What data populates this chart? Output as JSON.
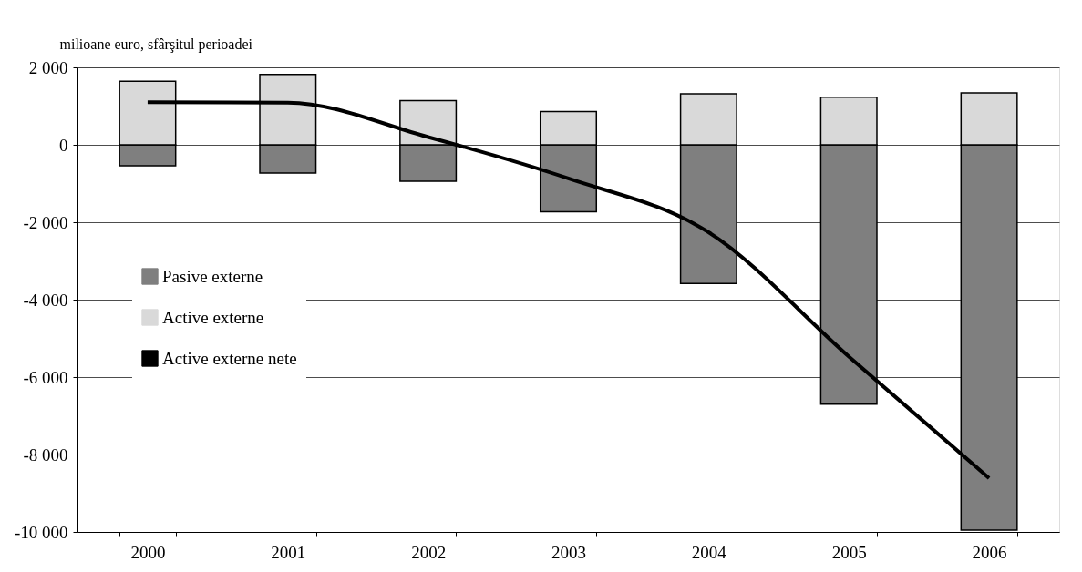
{
  "chart_data": {
    "type": "bar",
    "ylabel": "milioane euro, sfârşitul perioadei",
    "categories": [
      "2000",
      "2001",
      "2002",
      "2003",
      "2004",
      "2005",
      "2006"
    ],
    "series": [
      {
        "name": "Pasive externe",
        "color": "#7f7f7f",
        "values": [
          -540,
          -730,
          -940,
          -1730,
          -3580,
          -6700,
          -9950
        ]
      },
      {
        "name": "Active externe",
        "color": "#d9d9d9",
        "values": [
          1640,
          1820,
          1140,
          860,
          1320,
          1230,
          1340
        ]
      },
      {
        "name": "Active externe nete",
        "type": "line",
        "color": "#000000",
        "values": [
          1100,
          1090,
          200,
          -870,
          -2260,
          -5470,
          -8610
        ]
      }
    ],
    "stacked": true,
    "ylim": [
      -10000,
      2000
    ],
    "yticks": [
      {
        "value": -10000,
        "label": "-10 000"
      },
      {
        "value": -8000,
        "label": "-8 000"
      },
      {
        "value": -6000,
        "label": "-6 000"
      },
      {
        "value": -4000,
        "label": "-4 000"
      },
      {
        "value": -2000,
        "label": "-2 000"
      },
      0,
      {
        "value": 2000,
        "label": "2 000"
      }
    ],
    "grid": "y",
    "legend": "left",
    "marker": "none",
    "line_style": "solid"
  }
}
